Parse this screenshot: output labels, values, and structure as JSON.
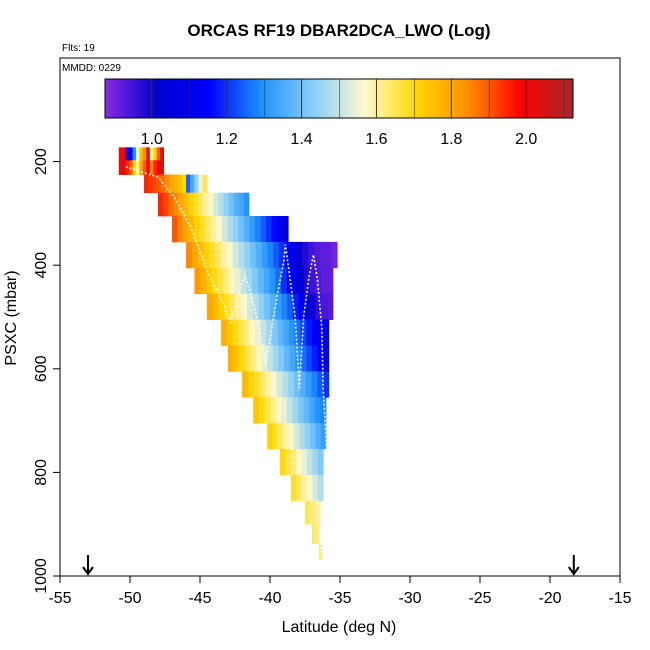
{
  "chart_data": {
    "type": "heatmap",
    "title": "ORCAS RF19 DBAR2DCA_LWO (Log)",
    "annotations": {
      "flights": "Flts: 19",
      "date": "MMDD: 0229"
    },
    "xlabel": "Latitude (deg N)",
    "ylabel": "PSXC (mbar)",
    "xlim": [
      -55,
      -15
    ],
    "ylim": [
      1000,
      0
    ],
    "x_ticks": [
      -55,
      -50,
      -45,
      -40,
      -35,
      -30,
      -25,
      -20,
      -15
    ],
    "x_tick_labels": [
      "-55",
      "-50",
      "-45",
      "-40",
      "-35",
      "-30",
      "-25",
      "-20",
      "-15"
    ],
    "y_ticks": [
      200,
      400,
      600,
      800,
      1000
    ],
    "y_tick_labels": [
      "200",
      "400",
      "600",
      "800",
      "1000"
    ],
    "colorbar": {
      "range": [
        0.875,
        2.125
      ],
      "ticks": [
        1.0,
        1.2,
        1.4,
        1.6,
        1.8,
        2.0
      ],
      "tick_labels": [
        "1.0",
        "1.2",
        "1.4",
        "1.6",
        "1.8",
        "2.0"
      ],
      "stops": [
        "#8a2be2",
        "#0000cd",
        "#0000ff",
        "#1e90ff",
        "#87cefa",
        "#fffacd",
        "#ffd700",
        "#ff8c00",
        "#ff0000",
        "#a52a2a"
      ]
    },
    "markers": [
      {
        "name": "flight-endpoint-south",
        "lat": -53,
        "symbol": "down-arrow"
      },
      {
        "name": "flight-endpoint-north",
        "lat": -18.3,
        "symbol": "down-arrow"
      }
    ],
    "rows": [
      {
        "p": 185,
        "lat_start": -50.8,
        "lat_end": -47.6,
        "values": [
          2.02,
          2.0,
          1.0,
          1.1,
          1.3,
          1.55,
          1.75,
          1.85,
          2.05,
          1.6,
          1.7,
          1.9,
          2.05
        ]
      },
      {
        "p": 210,
        "lat_start": -50.8,
        "lat_end": -47.6,
        "values": [
          2.02,
          2.0,
          1.95,
          1.9,
          1.7,
          1.6,
          1.8,
          1.9,
          2.0,
          1.85,
          1.95,
          2.0,
          2.05
        ]
      },
      {
        "p": 240,
        "lat_start": -49.0,
        "lat_end": -44.5,
        "values": [
          1.95,
          1.93,
          1.92,
          1.9,
          1.88,
          1.85,
          1.8,
          1.78,
          1.75,
          1.7,
          1.25,
          1.35,
          1.45,
          1.55,
          1.65
        ]
      },
      {
        "p": 280,
        "lat_start": -48.0,
        "lat_end": -41.5,
        "values": [
          1.95,
          1.92,
          1.88,
          1.85,
          1.8,
          1.76,
          1.72,
          1.68,
          1.64,
          1.6,
          1.56,
          1.52,
          1.48,
          1.44,
          1.4,
          1.36,
          1.34,
          1.3
        ]
      },
      {
        "p": 330,
        "lat_start": -47.0,
        "lat_end": -38.7,
        "values": [
          1.9,
          1.85,
          1.8,
          1.76,
          1.72,
          1.68,
          1.64,
          1.6,
          1.56,
          1.52,
          1.48,
          1.44,
          1.4,
          1.36,
          1.32,
          1.28,
          1.24,
          1.2,
          1.16,
          1.12,
          1.05
        ]
      },
      {
        "p": 380,
        "lat_start": -46.0,
        "lat_end": -35.2,
        "values": [
          1.85,
          1.8,
          1.76,
          1.72,
          1.68,
          1.64,
          1.6,
          1.56,
          1.52,
          1.48,
          1.44,
          1.4,
          1.36,
          1.32,
          1.28,
          1.24,
          1.2,
          1.14,
          1.08,
          1.02,
          0.98,
          0.95,
          0.93,
          0.92,
          0.92,
          0.9
        ]
      },
      {
        "p": 430,
        "lat_start": -45.4,
        "lat_end": -35.5,
        "values": [
          1.82,
          1.78,
          1.74,
          1.7,
          1.66,
          1.62,
          1.58,
          1.54,
          1.5,
          1.46,
          1.42,
          1.38,
          1.34,
          1.3,
          1.26,
          1.2,
          1.14,
          1.08,
          1.02,
          0.98,
          0.95,
          0.93,
          0.92,
          0.92
        ]
      },
      {
        "p": 480,
        "lat_start": -44.5,
        "lat_end": -35.5,
        "values": [
          1.8,
          1.76,
          1.72,
          1.68,
          1.64,
          1.6,
          1.56,
          1.52,
          1.48,
          1.44,
          1.4,
          1.36,
          1.32,
          1.28,
          1.24,
          1.18,
          1.12,
          1.06,
          1.0,
          0.96,
          0.94,
          0.93
        ]
      },
      {
        "p": 530,
        "lat_start": -43.5,
        "lat_end": -35.8,
        "values": [
          1.78,
          1.74,
          1.7,
          1.66,
          1.62,
          1.58,
          1.54,
          1.5,
          1.46,
          1.42,
          1.38,
          1.34,
          1.3,
          1.26,
          1.22,
          1.18,
          1.14,
          1.1,
          1.06
        ]
      },
      {
        "p": 580,
        "lat_start": -43.0,
        "lat_end": -35.8,
        "values": [
          1.78,
          1.74,
          1.7,
          1.66,
          1.62,
          1.58,
          1.54,
          1.5,
          1.46,
          1.42,
          1.38,
          1.34,
          1.3,
          1.26,
          1.22,
          1.18,
          1.14,
          1.1
        ]
      },
      {
        "p": 630,
        "lat_start": -42.0,
        "lat_end": -35.8,
        "values": [
          1.76,
          1.72,
          1.68,
          1.64,
          1.6,
          1.56,
          1.52,
          1.48,
          1.44,
          1.4,
          1.36,
          1.32,
          1.28,
          1.24,
          1.2
        ]
      },
      {
        "p": 680,
        "lat_start": -41.2,
        "lat_end": -36.0,
        "values": [
          1.74,
          1.7,
          1.66,
          1.62,
          1.58,
          1.54,
          1.5,
          1.46,
          1.42,
          1.38,
          1.34,
          1.3,
          1.28
        ]
      },
      {
        "p": 730,
        "lat_start": -40.2,
        "lat_end": -36.0,
        "values": [
          1.72,
          1.68,
          1.64,
          1.6,
          1.56,
          1.52,
          1.48,
          1.44,
          1.4,
          1.36,
          1.32
        ]
      },
      {
        "p": 780,
        "lat_start": -39.3,
        "lat_end": -36.2,
        "values": [
          1.7,
          1.66,
          1.62,
          1.58,
          1.54,
          1.5,
          1.46,
          1.42
        ]
      },
      {
        "p": 830,
        "lat_start": -38.5,
        "lat_end": -36.2,
        "values": [
          1.68,
          1.64,
          1.6,
          1.56,
          1.52,
          1.48
        ]
      },
      {
        "p": 880,
        "lat_start": -37.5,
        "lat_end": -36.4,
        "values": [
          1.65,
          1.62,
          1.6
        ]
      },
      {
        "p": 920,
        "lat_start": -37.0,
        "lat_end": -36.5,
        "values": [
          1.64,
          1.62
        ]
      },
      {
        "p": 955,
        "lat_start": -36.5,
        "lat_end": -36.3,
        "values": [
          1.63
        ]
      }
    ],
    "flight_track": {
      "lat": [
        -50.3,
        -48.0,
        -46.8,
        -45.6,
        -44.5,
        -43.4,
        -42.8,
        -42.2,
        -41.8,
        -41.2,
        -40.3,
        -39.5,
        -39.0,
        -38.9,
        -38.2,
        -37.9,
        -37.6,
        -37.2,
        -36.9,
        -36.6,
        -36.3,
        -36.2,
        -36.0,
        -35.9,
        -36.1,
        -36.4
      ],
      "p": [
        210,
        230,
        270,
        330,
        410,
        470,
        510,
        450,
        420,
        470,
        590,
        460,
        390,
        360,
        500,
        640,
        500,
        420,
        380,
        430,
        520,
        640,
        730,
        800,
        880,
        955
      ]
    }
  }
}
